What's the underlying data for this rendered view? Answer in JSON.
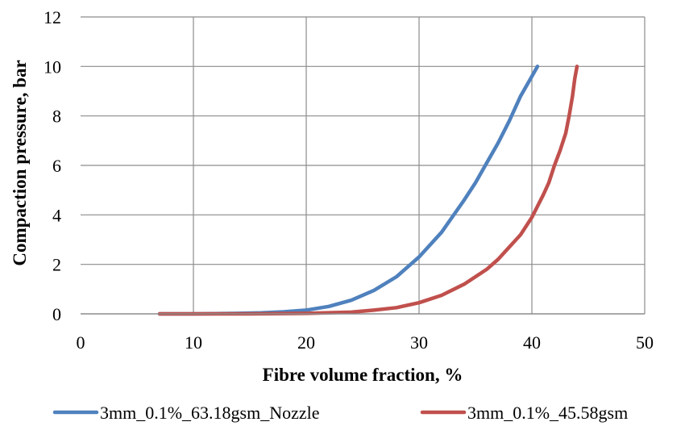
{
  "chart_data": {
    "type": "line",
    "xlabel": "Fibre volume fraction, %",
    "ylabel": "Compaction pressure, bar",
    "xlim": [
      0,
      50
    ],
    "ylim": [
      0,
      12
    ],
    "xticks": [
      0,
      10,
      20,
      30,
      40,
      50
    ],
    "yticks": [
      0,
      2,
      4,
      6,
      8,
      10,
      12
    ],
    "xtick_labels": [
      "0",
      "10",
      "20",
      "30",
      "40",
      "50"
    ],
    "ytick_labels": [
      "0",
      "2",
      "4",
      "6",
      "8",
      "10",
      "12"
    ],
    "grid": true,
    "legend_position": "bottom",
    "series": [
      {
        "name": "3mm_0.1%_63.18gsm_Nozzle",
        "color": "#4f81bd",
        "points": [
          [
            7,
            0
          ],
          [
            10,
            0
          ],
          [
            12,
            0.01
          ],
          [
            14,
            0.02
          ],
          [
            16,
            0.04
          ],
          [
            18,
            0.08
          ],
          [
            20,
            0.15
          ],
          [
            22,
            0.3
          ],
          [
            24,
            0.55
          ],
          [
            26,
            0.95
          ],
          [
            28,
            1.5
          ],
          [
            30,
            2.3
          ],
          [
            32,
            3.3
          ],
          [
            34,
            4.6
          ],
          [
            35,
            5.3
          ],
          [
            36,
            6.1
          ],
          [
            37,
            6.9
          ],
          [
            38,
            7.8
          ],
          [
            39,
            8.8
          ],
          [
            40,
            9.6
          ],
          [
            40.5,
            10
          ]
        ]
      },
      {
        "name": "3mm_0.1%_45.58gsm",
        "color": "#c0504d",
        "points": [
          [
            7,
            0
          ],
          [
            15,
            0
          ],
          [
            20,
            0.02
          ],
          [
            24,
            0.07
          ],
          [
            26,
            0.15
          ],
          [
            28,
            0.25
          ],
          [
            30,
            0.45
          ],
          [
            32,
            0.75
          ],
          [
            34,
            1.2
          ],
          [
            36,
            1.8
          ],
          [
            37,
            2.2
          ],
          [
            38,
            2.7
          ],
          [
            39,
            3.2
          ],
          [
            40,
            3.9
          ],
          [
            41,
            4.8
          ],
          [
            41.5,
            5.3
          ],
          [
            42,
            6.0
          ],
          [
            42.5,
            6.6
          ],
          [
            43,
            7.3
          ],
          [
            43.3,
            8.0
          ],
          [
            43.6,
            8.8
          ],
          [
            43.8,
            9.5
          ],
          [
            44,
            10
          ]
        ]
      }
    ]
  }
}
